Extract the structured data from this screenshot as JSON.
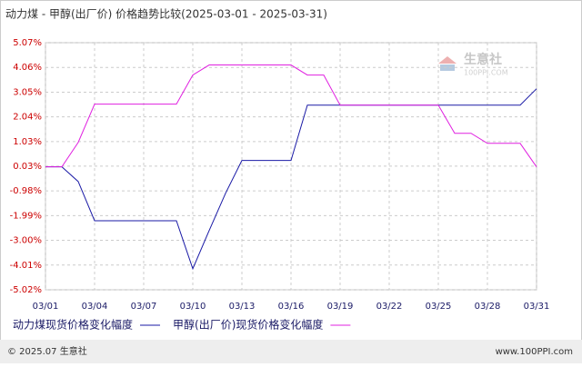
{
  "chart_data": {
    "type": "line",
    "title": "动力煤 - 甲醇(出厂价) 价格趋势比较(2025-03-01 - 2025-03-31)",
    "categories": [
      "03/01",
      null,
      null,
      "03/04",
      null,
      null,
      "03/07",
      null,
      null,
      "03/10",
      null,
      null,
      "03/13",
      null,
      null,
      "03/16",
      null,
      null,
      "03/19",
      null,
      null,
      "03/22",
      null,
      null,
      "03/25",
      null,
      null,
      "03/28",
      null,
      null,
      "03/31"
    ],
    "series": [
      {
        "name": "动力煤现货价格变化幅度",
        "color": "#1a1aa6",
        "values": [
          0,
          0,
          -0.6,
          -2.2,
          -2.2,
          -2.2,
          -2.2,
          -2.2,
          -2.2,
          -4.16,
          -2.6,
          -1.08,
          0.26,
          0.26,
          0.26,
          0.26,
          2.52,
          2.52,
          2.52,
          2.52,
          2.52,
          2.52,
          2.52,
          2.52,
          2.52,
          2.52,
          2.52,
          2.52,
          2.52,
          2.52,
          3.19
        ]
      },
      {
        "name": "甲醇(出厂价)现货价格变化幅度",
        "color": "#e020e0",
        "values": [
          0,
          0,
          1.0,
          2.56,
          2.56,
          2.56,
          2.56,
          2.56,
          2.56,
          3.75,
          4.16,
          4.16,
          4.16,
          4.16,
          4.16,
          4.16,
          3.75,
          3.75,
          2.52,
          2.52,
          2.52,
          2.52,
          2.52,
          2.52,
          2.52,
          1.37,
          1.37,
          0.96,
          0.96,
          0.96,
          0
        ]
      }
    ],
    "ylim": [
      -5.02,
      5.07
    ],
    "yticks": [
      {
        "value": 5.07,
        "label": "5.07%"
      },
      {
        "value": 4.06,
        "label": "4.06%"
      },
      {
        "value": 3.05,
        "label": "3.05%"
      },
      {
        "value": 2.04,
        "label": "2.04%"
      },
      {
        "value": 1.03,
        "label": "1.03%"
      },
      {
        "value": 0.03,
        "label": "0.03%"
      },
      {
        "value": -0.98,
        "label": "-0.98%"
      },
      {
        "value": -1.99,
        "label": "-1.99%"
      },
      {
        "value": -3.0,
        "label": "-3.00%"
      },
      {
        "value": -4.01,
        "label": "-4.01%"
      },
      {
        "value": -5.02,
        "label": "-5.02%"
      }
    ],
    "grid": true
  },
  "watermark": {
    "name": "生意社",
    "site": "100PPI.COM"
  },
  "footer": {
    "copyright": "© 2025.07 生意社",
    "url": "www.100PPI.com"
  }
}
